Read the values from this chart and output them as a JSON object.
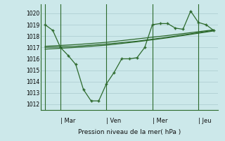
{
  "background_color": "#cce8ea",
  "grid_color": "#b0d0d3",
  "line_color": "#2d6a2d",
  "ylabel": "Pression niveau de la mer( hPa )",
  "ylim": [
    1011.5,
    1020.8
  ],
  "yticks": [
    1012,
    1013,
    1014,
    1015,
    1016,
    1017,
    1018,
    1019,
    1020
  ],
  "day_labels": [
    "Mar",
    "Ven",
    "Mer",
    "Jeu"
  ],
  "day_positions": [
    1,
    4,
    7,
    10
  ],
  "vline_positions": [
    0,
    1,
    4,
    7,
    10
  ],
  "series1_x": [
    0,
    0.5,
    1.0,
    1.5,
    2.0,
    2.5,
    3.0,
    3.5,
    4.0,
    4.5,
    5.0,
    5.5,
    6.0,
    6.5,
    7.0,
    7.5,
    8.0,
    8.5,
    9.0,
    9.5,
    10.0,
    10.5,
    11.0
  ],
  "series1_y": [
    1019.0,
    1018.5,
    1017.0,
    1016.3,
    1015.5,
    1013.3,
    1012.3,
    1012.3,
    1013.8,
    1014.8,
    1016.0,
    1016.0,
    1016.1,
    1017.0,
    1019.0,
    1019.1,
    1019.1,
    1018.7,
    1018.6,
    1020.2,
    1019.2,
    1019.0,
    1018.5
  ],
  "series2_x": [
    0,
    2.0,
    4.0,
    6.0,
    8.0,
    11.0
  ],
  "series2_y": [
    1017.0,
    1017.1,
    1017.3,
    1017.55,
    1017.9,
    1018.5
  ],
  "series3_x": [
    0,
    2.0,
    4.0,
    6.0,
    8.0,
    11.0
  ],
  "series3_y": [
    1016.85,
    1017.0,
    1017.2,
    1017.5,
    1017.85,
    1018.45
  ],
  "series4_x": [
    0,
    2.0,
    4.0,
    6.0,
    8.0,
    11.0
  ],
  "series4_y": [
    1017.1,
    1017.25,
    1017.45,
    1017.75,
    1018.05,
    1018.55
  ]
}
